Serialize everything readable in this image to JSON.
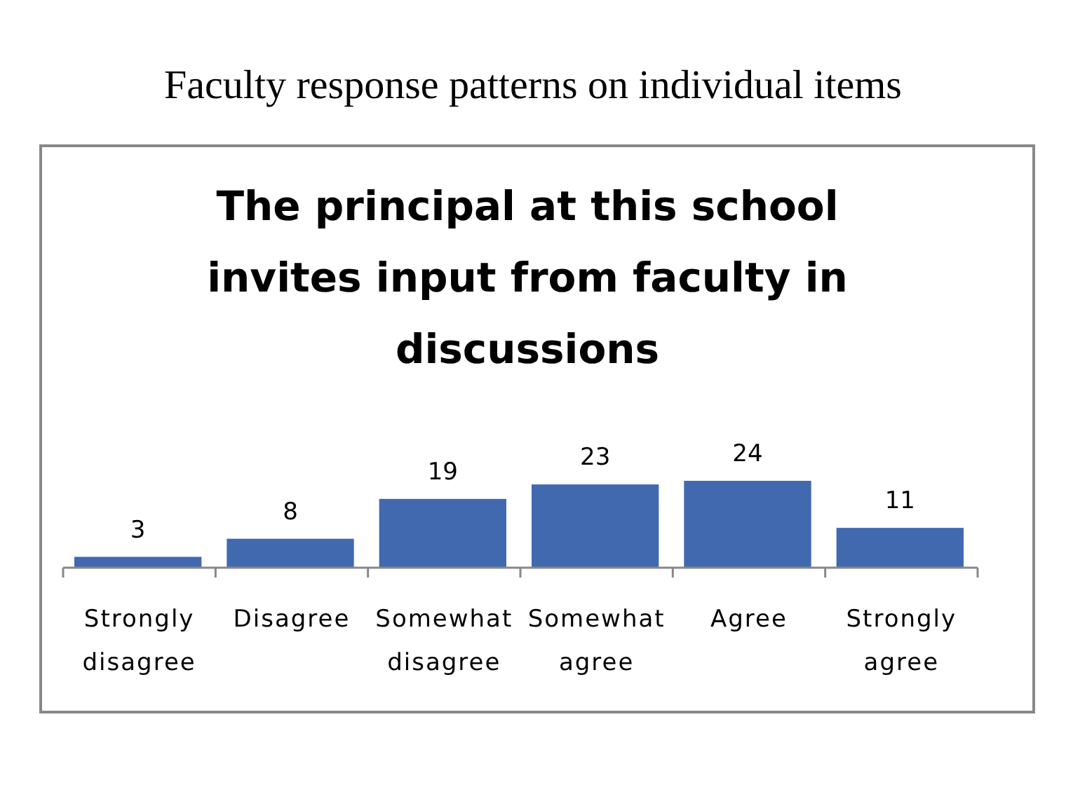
{
  "chart_data": {
    "type": "bar",
    "title": "Faculty response patterns on individual items",
    "subtitle": "The principal at this school invites input from faculty in discussions",
    "categories": [
      "Strongly disagree",
      "Disagree",
      "Somewhat disagree",
      "Somewhat agree",
      "Agree",
      "Strongly agree"
    ],
    "values": [
      3,
      8,
      19,
      23,
      24,
      11
    ],
    "color": "#4169b0",
    "data_labels": true
  }
}
